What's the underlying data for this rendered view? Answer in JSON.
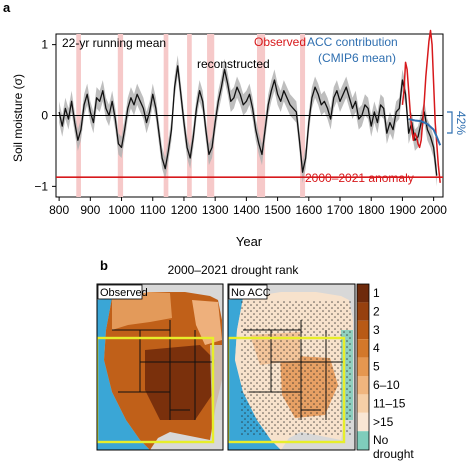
{
  "panel_a": {
    "label": "a",
    "running_mean_label": "22-yr running mean",
    "reconstructed_label": "reconstructed",
    "observed_label": "Observed",
    "acc_label_line1": "ACC contribution",
    "acc_label_line2": "(CMIP6 mean)",
    "anomaly_label": "2000–2021 anomaly",
    "percent_label": "42%",
    "colors": {
      "reconstructed": "#111111",
      "band": "#b3b3b3",
      "observed": "#d7191c",
      "acc": "#2f6fb0",
      "drought_shade": "#f6c9c9"
    }
  },
  "chart_data": {
    "type": "line",
    "xlabel": "Year",
    "ylabel": "Soil moisture (σ)",
    "xlim": [
      790,
      2030
    ],
    "ylim": [
      -1.15,
      1.15
    ],
    "x_ticks": [
      800,
      900,
      1000,
      1100,
      1200,
      1300,
      1400,
      1500,
      1600,
      1700,
      1800,
      1900,
      2000
    ],
    "y_ticks": [
      -1,
      0,
      1
    ],
    "zero_line": 0,
    "anomaly_value": -0.87,
    "drought_periods": [
      [
        855,
        870
      ],
      [
        988,
        1005
      ],
      [
        1135,
        1150
      ],
      [
        1210,
        1225
      ],
      [
        1274,
        1297
      ],
      [
        1434,
        1460
      ],
      [
        1572,
        1588
      ]
    ],
    "series": [
      {
        "name": "reconstructed",
        "x": [
          800,
          810,
          820,
          830,
          840,
          850,
          860,
          870,
          880,
          890,
          900,
          910,
          920,
          930,
          940,
          950,
          960,
          970,
          980,
          990,
          1000,
          1010,
          1020,
          1030,
          1040,
          1050,
          1060,
          1070,
          1080,
          1090,
          1100,
          1110,
          1120,
          1130,
          1140,
          1150,
          1160,
          1170,
          1180,
          1190,
          1200,
          1210,
          1220,
          1230,
          1240,
          1250,
          1260,
          1270,
          1280,
          1290,
          1300,
          1310,
          1320,
          1330,
          1340,
          1350,
          1360,
          1370,
          1380,
          1390,
          1400,
          1410,
          1420,
          1430,
          1440,
          1450,
          1460,
          1470,
          1480,
          1490,
          1500,
          1510,
          1520,
          1530,
          1540,
          1550,
          1560,
          1570,
          1580,
          1590,
          1600,
          1610,
          1620,
          1630,
          1640,
          1650,
          1660,
          1670,
          1680,
          1690,
          1700,
          1710,
          1720,
          1730,
          1740,
          1750,
          1760,
          1770,
          1780,
          1790,
          1800,
          1810,
          1820,
          1830,
          1840,
          1850,
          1860,
          1870,
          1880,
          1890,
          1900,
          1910,
          1920,
          1930,
          1940,
          1950,
          1960,
          1970,
          1980,
          1990,
          2000,
          2010
        ],
        "y": [
          0.05,
          -0.15,
          0.1,
          -0.05,
          0.2,
          -0.1,
          -0.35,
          -0.2,
          0.15,
          0.3,
          0.05,
          -0.1,
          0.25,
          0.2,
          0.35,
          0.1,
          0.0,
          0.2,
          -0.05,
          -0.4,
          -0.45,
          -0.2,
          0.1,
          0.25,
          0.15,
          0.3,
          0.2,
          0.1,
          -0.1,
          0.05,
          0.3,
          0.1,
          -0.25,
          -0.6,
          -0.75,
          -0.5,
          -0.2,
          0.4,
          0.7,
          0.3,
          -0.1,
          -0.45,
          -0.6,
          -0.3,
          0.1,
          0.35,
          0.2,
          -0.2,
          -0.55,
          -0.45,
          -0.1,
          0.2,
          0.4,
          0.65,
          0.45,
          0.2,
          0.25,
          0.4,
          0.3,
          0.15,
          0.2,
          0.3,
          0.1,
          -0.2,
          -0.4,
          -0.55,
          -0.2,
          0.15,
          0.35,
          0.5,
          0.3,
          0.2,
          0.35,
          0.25,
          0.15,
          0.1,
          0.05,
          -0.35,
          -0.8,
          -0.6,
          -0.1,
          0.25,
          0.4,
          0.3,
          0.15,
          0.2,
          0.1,
          -0.05,
          0.25,
          0.35,
          0.2,
          0.3,
          0.4,
          0.25,
          0.1,
          0.2,
          -0.05,
          0.0,
          0.15,
          0.1,
          -0.15,
          0.05,
          -0.1,
          0.15,
          0.1,
          -0.25,
          -0.1,
          -0.2,
          0.05,
          0.1,
          0.5,
          0.3,
          -0.25,
          -0.1,
          -0.35,
          -0.3,
          -0.1,
          0.05,
          -0.2,
          -0.3,
          -0.45,
          -0.85
        ],
        "spread": 0.15
      },
      {
        "name": "Observed",
        "x": [
          1900,
          1905,
          1910,
          1915,
          1920,
          1925,
          1930,
          1935,
          1940,
          1945,
          1950,
          1955,
          1960,
          1965,
          1970,
          1975,
          1980,
          1985,
          1990,
          1995,
          2000,
          2005,
          2010,
          2015,
          2021
        ],
        "y": [
          0.15,
          0.35,
          0.75,
          0.65,
          0.35,
          0.05,
          -0.2,
          -0.35,
          -0.25,
          -0.3,
          -0.4,
          -0.45,
          -0.35,
          -0.1,
          0.2,
          0.55,
          0.8,
          1.05,
          1.2,
          1.0,
          0.45,
          -0.1,
          -0.4,
          -0.7,
          -0.95
        ]
      },
      {
        "name": "ACC contribution (CMIP6 mean)",
        "x": [
          1920,
          1940,
          1960,
          1980,
          2000,
          2010,
          2021
        ],
        "y": [
          -0.05,
          -0.07,
          -0.08,
          -0.12,
          -0.2,
          -0.3,
          -0.42
        ]
      }
    ]
  },
  "panel_b": {
    "label": "b",
    "title": "2000–2021 drought rank",
    "observed_map_label": "Observed",
    "noacc_map_label": "No ACC",
    "legend": [
      {
        "label": "1",
        "color": "#6e2a0c"
      },
      {
        "label": "2",
        "color": "#96400e"
      },
      {
        "label": "3",
        "color": "#b85a16"
      },
      {
        "label": "4",
        "color": "#d3782a"
      },
      {
        "label": "5",
        "color": "#e59750"
      },
      {
        "label": "6–10",
        "color": "#f0b57e"
      },
      {
        "label": "11–15",
        "color": "#f6cfa7"
      },
      {
        "label": ">15",
        "color": "#f9e6d4"
      },
      {
        "label": "No drought",
        "color": "#7fcdbb"
      }
    ]
  }
}
